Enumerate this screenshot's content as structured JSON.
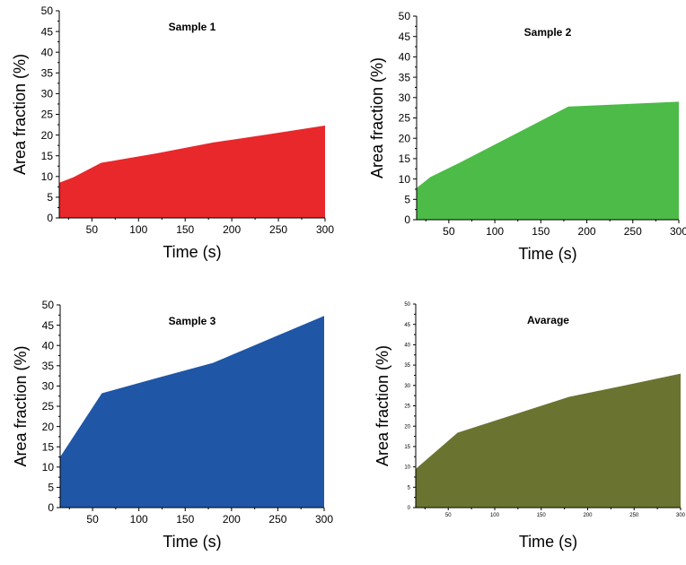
{
  "chart_data": [
    {
      "type": "area",
      "title": "Sample 1",
      "xlabel": "Time (s)",
      "ylabel": "Area fraction (%)",
      "x": [
        15,
        30,
        60,
        120,
        180,
        240,
        300
      ],
      "series": [
        {
          "values": [
            8.5,
            9.8,
            13.3,
            15.6,
            18.2,
            20.2,
            22.3
          ]
        }
      ],
      "xlim": [
        15,
        300
      ],
      "ylim": [
        0,
        50
      ],
      "xticks": [
        50,
        100,
        150,
        200,
        250,
        300
      ],
      "yticks": [
        0,
        5,
        10,
        15,
        20,
        25,
        30,
        35,
        40,
        45,
        50
      ],
      "fill_color": "#e8282b",
      "grid": false,
      "legend": "none"
    },
    {
      "type": "area",
      "title": "Sample 2",
      "xlabel": "Time (s)",
      "ylabel": "Area fraction (%)",
      "x": [
        15,
        30,
        60,
        120,
        180,
        240,
        300
      ],
      "series": [
        {
          "values": [
            7.8,
            10.5,
            13.8,
            20.8,
            27.8,
            28.4,
            29.0
          ]
        }
      ],
      "xlim": [
        15,
        300
      ],
      "ylim": [
        0,
        50
      ],
      "xticks": [
        50,
        100,
        150,
        200,
        250,
        300
      ],
      "yticks": [
        0,
        5,
        10,
        15,
        20,
        25,
        30,
        35,
        40,
        45,
        50
      ],
      "fill_color": "#4cbb47",
      "grid": false,
      "legend": "none"
    },
    {
      "type": "area",
      "title": "Sample 3",
      "xlabel": "Time (s)",
      "ylabel": "Area fraction (%)",
      "x": [
        15,
        60,
        120,
        180,
        240,
        300
      ],
      "series": [
        {
          "values": [
            12.5,
            28.2,
            32.0,
            35.7,
            41.5,
            47.3
          ]
        }
      ],
      "xlim": [
        15,
        300
      ],
      "ylim": [
        0,
        50
      ],
      "xticks": [
        50,
        100,
        150,
        200,
        250,
        300
      ],
      "yticks": [
        0,
        5,
        10,
        15,
        20,
        25,
        30,
        35,
        40,
        45,
        50
      ],
      "fill_color": "#1f56a6",
      "grid": false,
      "legend": "none"
    },
    {
      "type": "area",
      "title": "Avarage",
      "xlabel": "Time (s)",
      "ylabel": "Area fraction (%)",
      "x": [
        15,
        60,
        120,
        180,
        240,
        300
      ],
      "series": [
        {
          "values": [
            9.5,
            18.4,
            22.8,
            27.2,
            30.0,
            32.9
          ]
        }
      ],
      "xlim": [
        15,
        300
      ],
      "ylim": [
        0,
        50
      ],
      "xticks": [
        50,
        100,
        150,
        200,
        250,
        300
      ],
      "yticks": [
        0,
        5,
        10,
        15,
        20,
        25,
        30,
        35,
        40,
        45,
        50
      ],
      "fill_color": "#6b7331",
      "grid": false,
      "legend": "none"
    }
  ]
}
